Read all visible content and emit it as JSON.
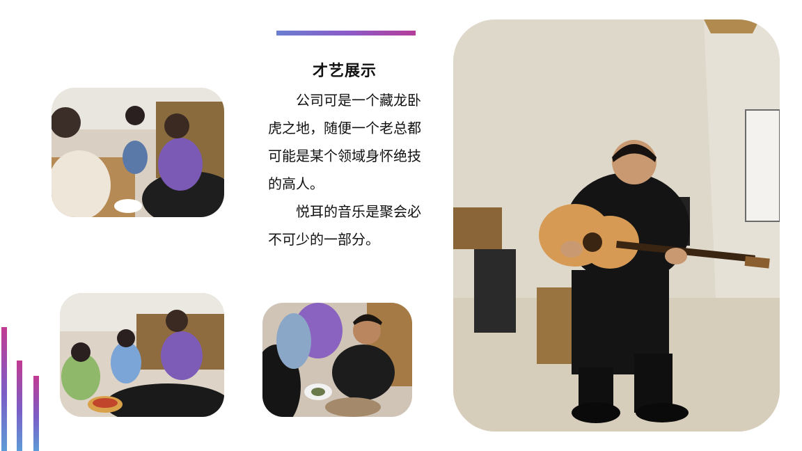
{
  "section": {
    "title": "才艺展示",
    "paragraphs": [
      "公司可是一个藏龙卧虎之地，随便一个老总都可能是某个领域身怀绝技的高人。",
      "悦耳的音乐是聚会必不可少的一部分。"
    ]
  },
  "colors": {
    "accent_start": "#6a7fd0",
    "accent_end": "#b43d9a",
    "text": "#111111"
  },
  "photos": [
    {
      "name": "group-eating-photo"
    },
    {
      "name": "group-sitting-photo"
    },
    {
      "name": "man-eating-photo"
    },
    {
      "name": "guitar-player-photo"
    }
  ]
}
